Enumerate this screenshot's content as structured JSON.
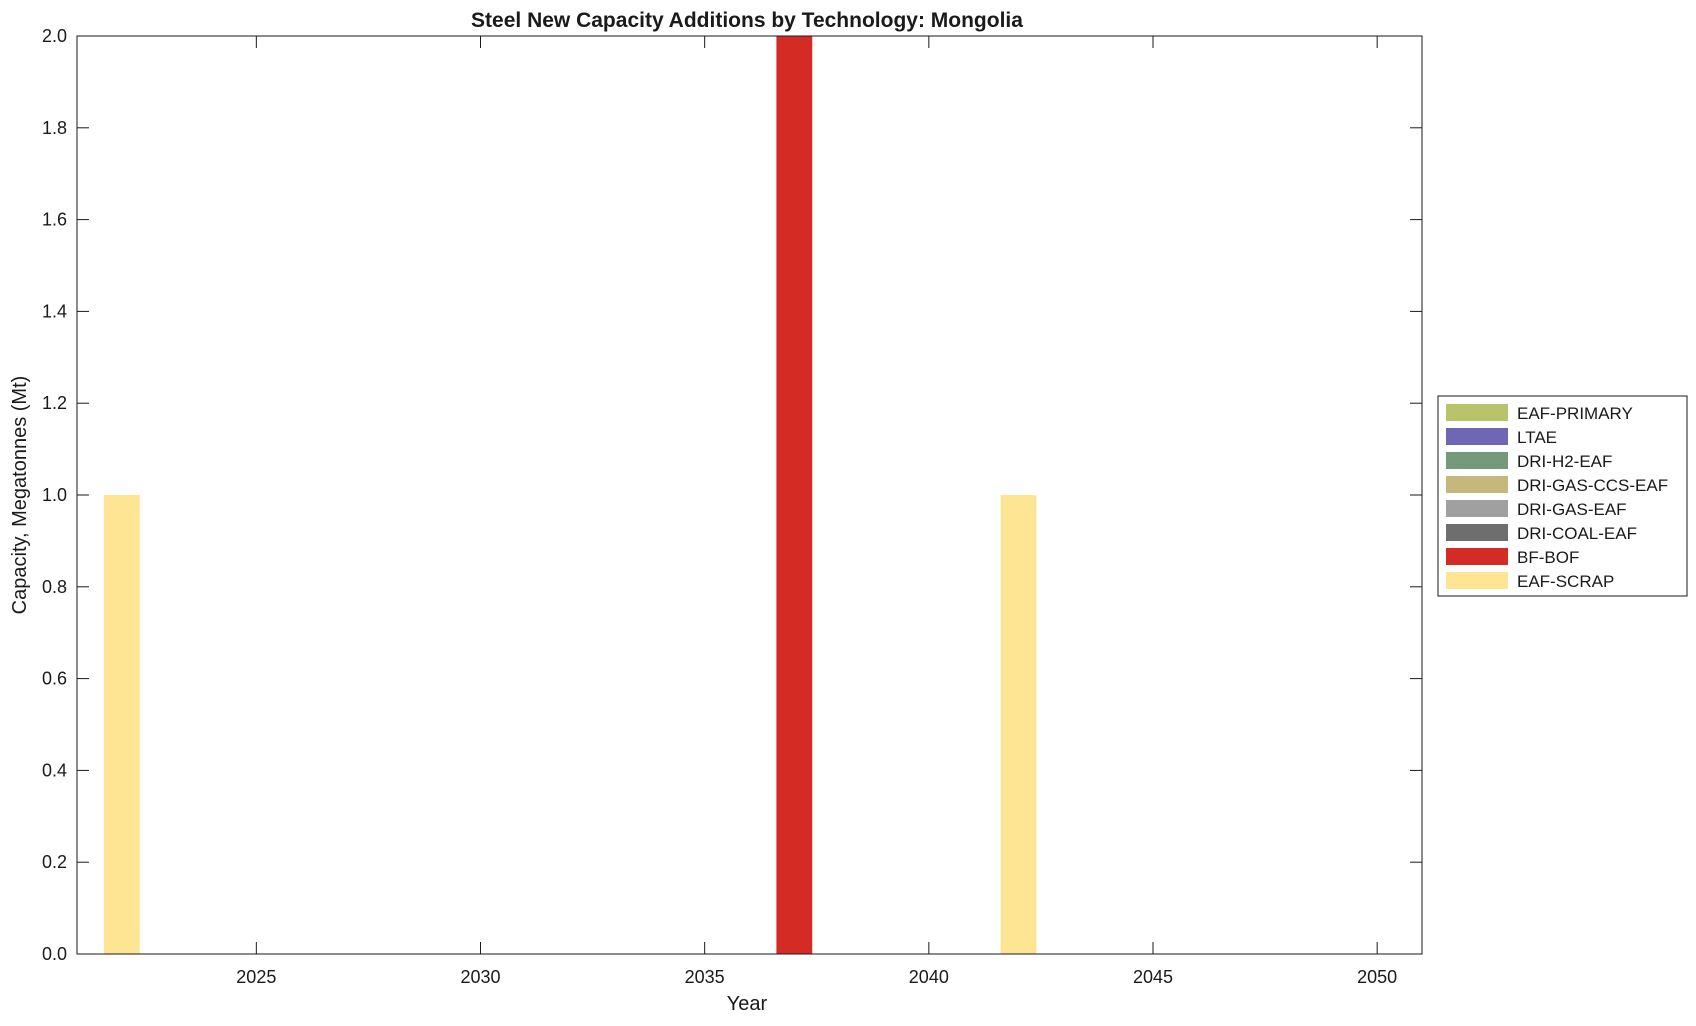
{
  "chart_data": {
    "type": "bar",
    "stacked": true,
    "title": "Steel New Capacity Additions by Technology: Mongolia",
    "xlabel": "Year",
    "ylabel": "Capacity, Megatonnes (Mt)",
    "xlim": [
      2021,
      2051
    ],
    "ylim": [
      0,
      2
    ],
    "x_ticks": [
      2025,
      2030,
      2035,
      2040,
      2045,
      2050
    ],
    "y_ticks": [
      "0.0",
      "0.2",
      "0.4",
      "0.6",
      "0.8",
      "1.0",
      "1.2",
      "1.4",
      "1.6",
      "1.8",
      "2.0"
    ],
    "categories": [
      2022,
      2037,
      2042
    ],
    "grid": false,
    "legend_position": "right",
    "series": [
      {
        "name": "EAF-PRIMARY",
        "color": "#b9c46a",
        "values": [
          0,
          0,
          0
        ]
      },
      {
        "name": "LTAE",
        "color": "#7066b6",
        "values": [
          0,
          0,
          0
        ]
      },
      {
        "name": "DRI-H2-EAF",
        "color": "#759a7a",
        "values": [
          0,
          0,
          0
        ]
      },
      {
        "name": "DRI-GAS-CCS-EAF",
        "color": "#c4b87c",
        "values": [
          0,
          0,
          0
        ]
      },
      {
        "name": "DRI-GAS-EAF",
        "color": "#a0a0a0",
        "values": [
          0,
          0,
          0
        ]
      },
      {
        "name": "DRI-COAL-EAF",
        "color": "#6e6e6e",
        "values": [
          0,
          0,
          0
        ]
      },
      {
        "name": "BF-BOF",
        "color": "#d42b25",
        "values": [
          0,
          2.0,
          0
        ]
      },
      {
        "name": "EAF-SCRAP",
        "color": "#fde594",
        "values": [
          1.0,
          0,
          1.0
        ]
      }
    ]
  }
}
